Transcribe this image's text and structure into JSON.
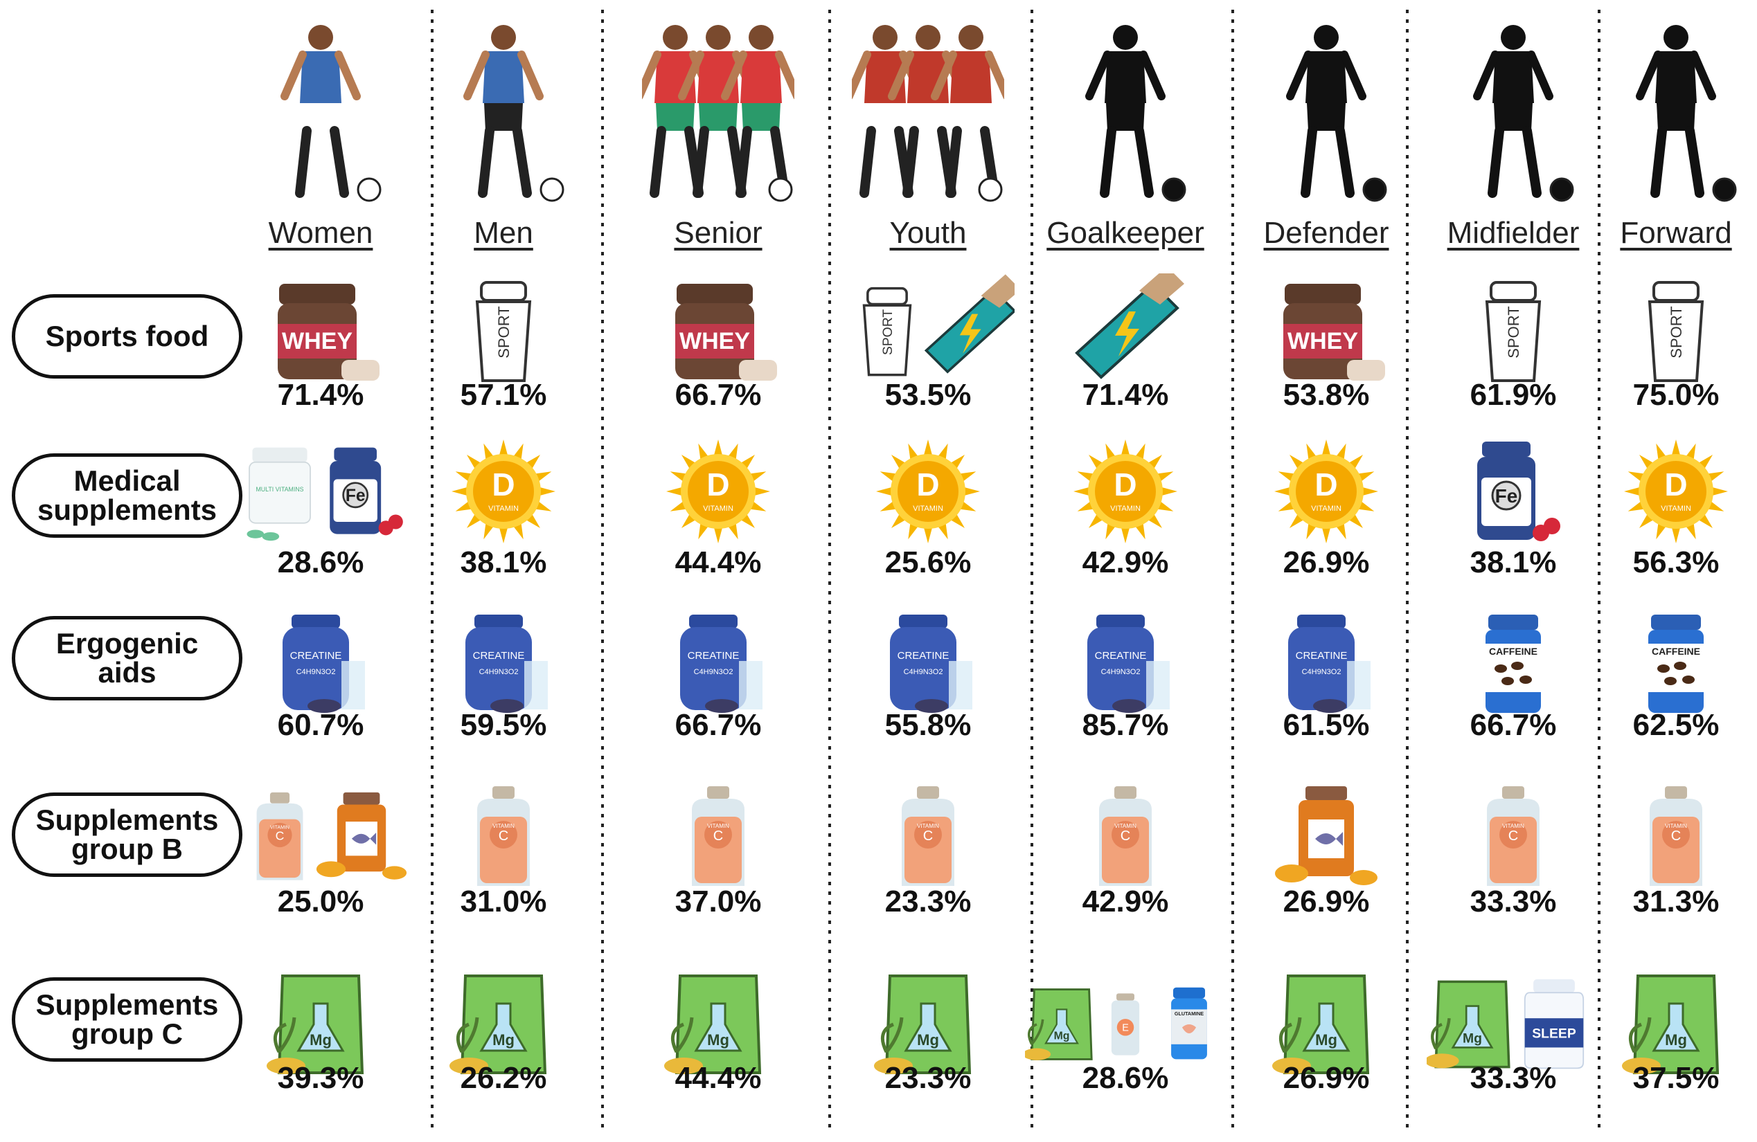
{
  "groups": [
    "Women",
    "Men",
    "Senior",
    "Youth",
    "Goalkeeper",
    "Defender",
    "Midfielder",
    "Forward"
  ],
  "categories": [
    {
      "label": "Sports food",
      "values": [
        "71.4%",
        "57.1%",
        "66.7%",
        "53.5%",
        "71.4%",
        "53.8%",
        "61.9%",
        "75.0%"
      ],
      "icons": [
        [
          "whey"
        ],
        [
          "shaker"
        ],
        [
          "whey"
        ],
        [
          "shaker",
          "energy-bar"
        ],
        [
          "energy-bar"
        ],
        [
          "whey"
        ],
        [
          "shaker"
        ],
        [
          "shaker"
        ]
      ]
    },
    {
      "label": "Medical supplements",
      "values": [
        "28.6%",
        "38.1%",
        "44.4%",
        "25.6%",
        "42.9%",
        "26.9%",
        "38.1%",
        "56.3%"
      ],
      "icons": [
        [
          "multivitamin",
          "iron"
        ],
        [
          "vitamin-d"
        ],
        [
          "vitamin-d"
        ],
        [
          "vitamin-d"
        ],
        [
          "vitamin-d"
        ],
        [
          "vitamin-d"
        ],
        [
          "iron"
        ],
        [
          "vitamin-d"
        ]
      ]
    },
    {
      "label": "Ergogenic aids",
      "values": [
        "60.7%",
        "59.5%",
        "66.7%",
        "55.8%",
        "85.7%",
        "61.5%",
        "66.7%",
        "62.5%"
      ],
      "icons": [
        [
          "creatine"
        ],
        [
          "creatine"
        ],
        [
          "creatine"
        ],
        [
          "creatine"
        ],
        [
          "creatine"
        ],
        [
          "creatine"
        ],
        [
          "caffeine"
        ],
        [
          "caffeine"
        ]
      ]
    },
    {
      "label": "Supplements group B",
      "values": [
        "25.0%",
        "31.0%",
        "37.0%",
        "23.3%",
        "42.9%",
        "26.9%",
        "33.3%",
        "31.3%"
      ],
      "icons": [
        [
          "vitamin-c",
          "fish-oil"
        ],
        [
          "vitamin-c"
        ],
        [
          "vitamin-c"
        ],
        [
          "vitamin-c"
        ],
        [
          "vitamin-c"
        ],
        [
          "fish-oil"
        ],
        [
          "vitamin-c"
        ],
        [
          "vitamin-c"
        ]
      ]
    },
    {
      "label": "Supplements group C",
      "values": [
        "39.3%",
        "26.2%",
        "44.4%",
        "23.3%",
        "28.6%",
        "26.9%",
        "33.3%",
        "37.5%"
      ],
      "icons": [
        [
          "magnesium"
        ],
        [
          "magnesium"
        ],
        [
          "magnesium"
        ],
        [
          "magnesium"
        ],
        [
          "magnesium",
          "vitamin-e",
          "glutamine"
        ],
        [
          "magnesium"
        ],
        [
          "magnesium",
          "sleep"
        ],
        [
          "magnesium"
        ]
      ]
    }
  ],
  "icon_text": {
    "whey": "WHEY",
    "shaker": "SPORT",
    "vitamin-d": "D",
    "vitamin-d-sub": "VITAMIN",
    "iron": "Fe",
    "multivitamin": "MULTI VITAMINS",
    "creatine": "CREATINE",
    "creatine-sub": "C4H9N3O2",
    "caffeine": "CAFFEINE",
    "vitamin-c": "C",
    "vitamin-c-sub": "VITAMIN",
    "magnesium": "Mg",
    "vitamin-e": "E",
    "glutamine": "GLUTAMINE",
    "sleep": "SLEEP"
  },
  "figures": [
    "woman-player-icon",
    "man-player-icon",
    "senior-team-icon",
    "youth-team-icon",
    "goalkeeper-silhouette-icon",
    "defender-silhouette-icon",
    "midfielder-silhouette-icon",
    "forward-silhouette-icon"
  ],
  "colors": {
    "whey_lid": "#5a3a2a",
    "whey_label": "#c0394b",
    "energy_bar": "#1fa3a6",
    "bolt": "#f5c518",
    "sun": "#f7b500",
    "iron_bottle": "#2f4a8f",
    "creatine": "#3b5bb5",
    "caffeine": "#2a6fd1",
    "vitamin_c": "#f2a27a",
    "fish_oil": "#e07b1f",
    "magnesium": "#7cc85a",
    "silhouette": "#111111"
  }
}
